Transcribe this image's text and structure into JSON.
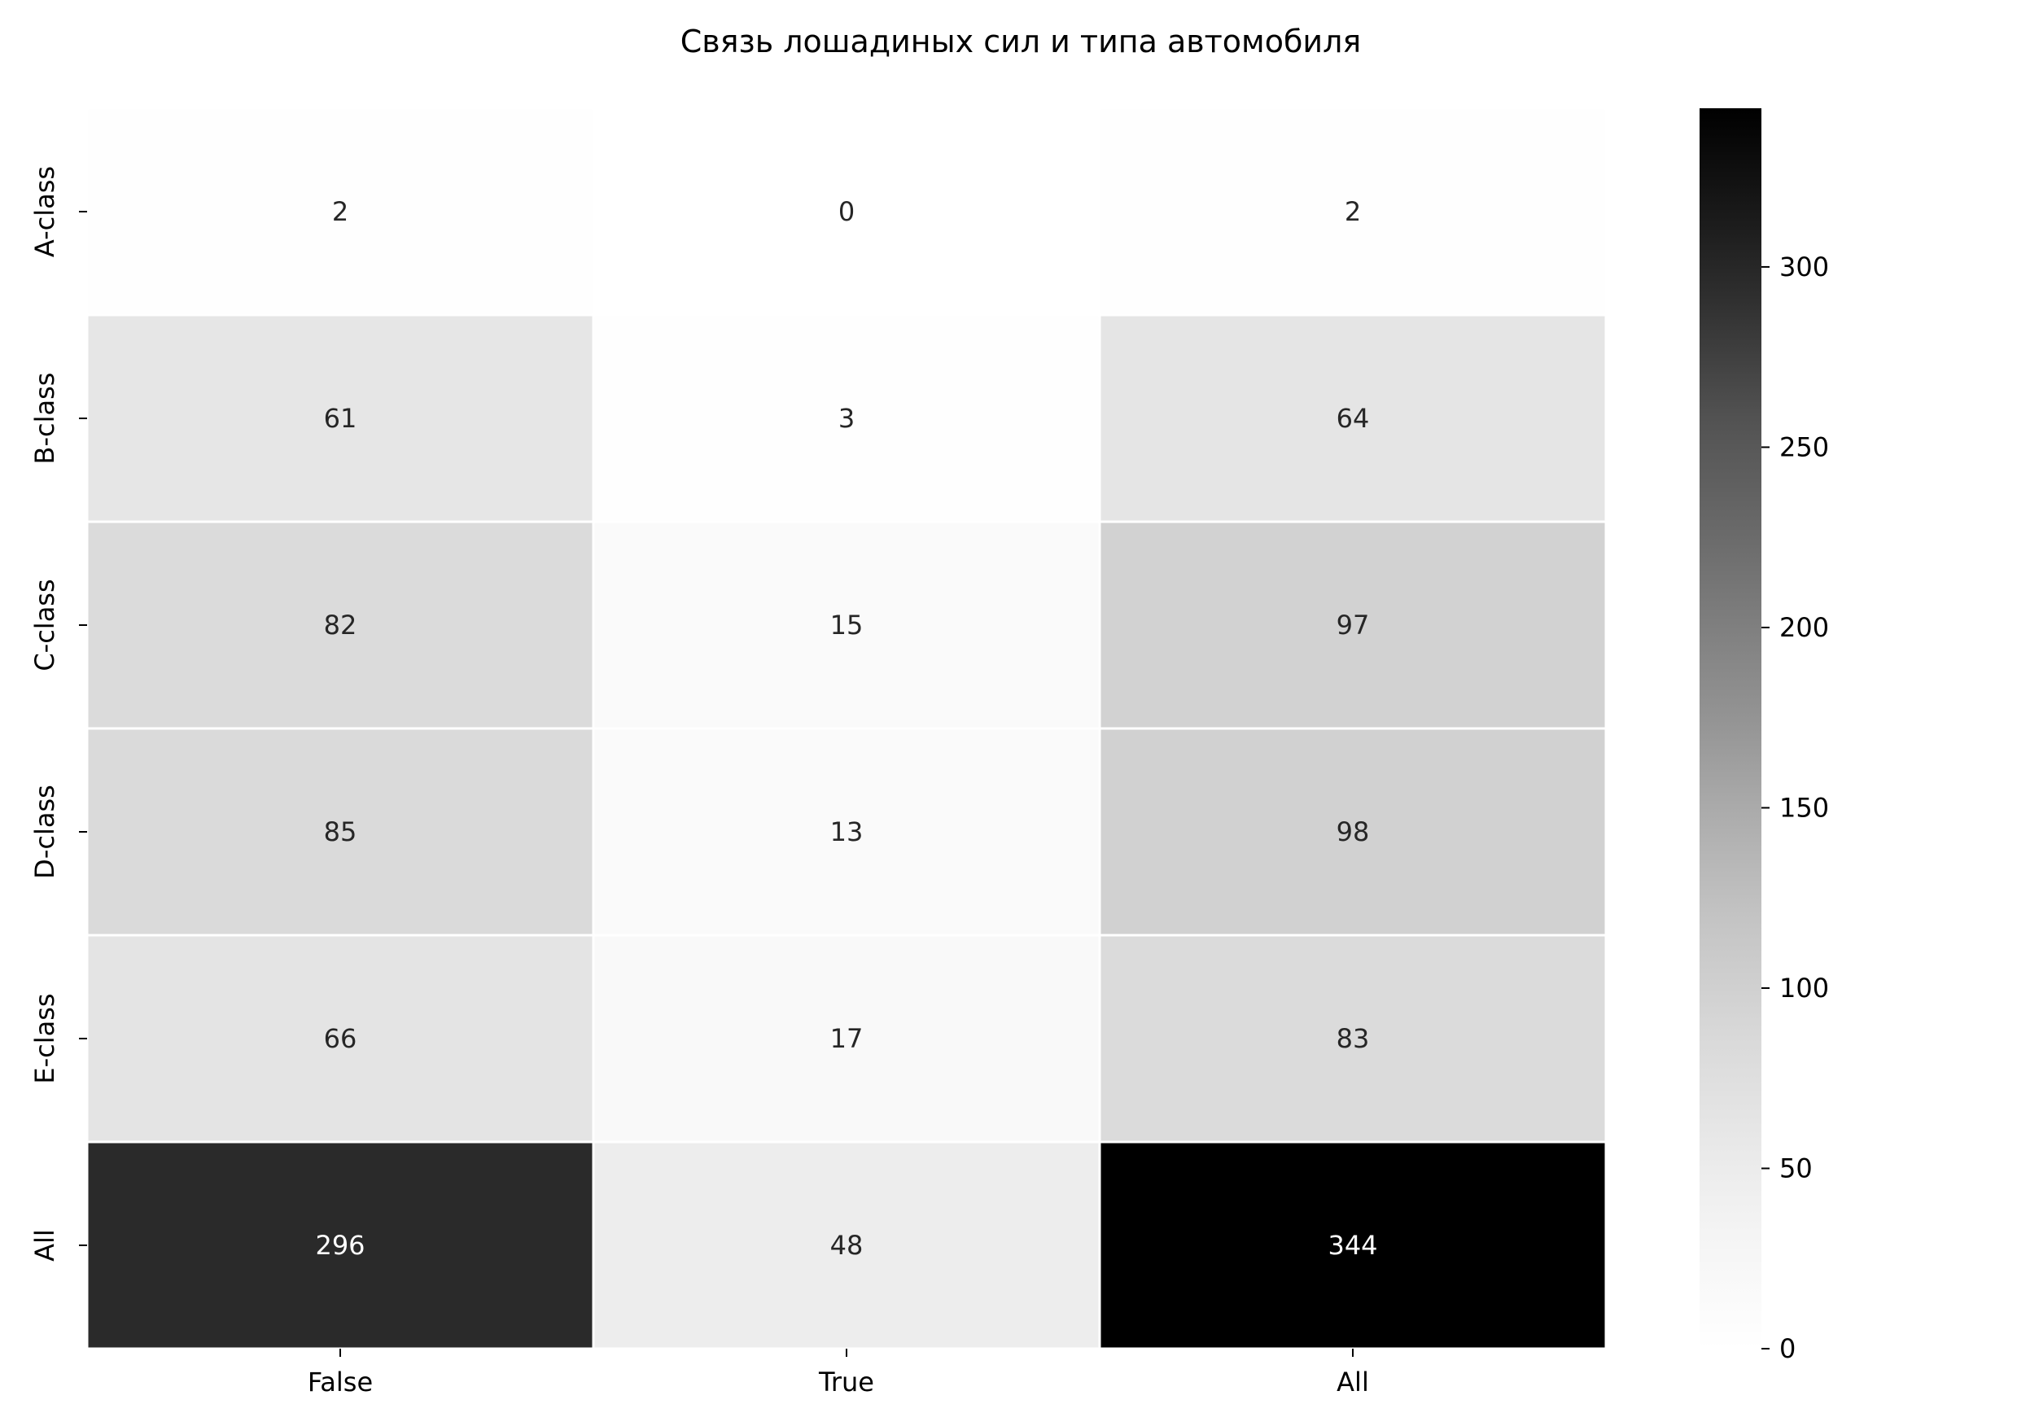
{
  "chart_data": {
    "type": "heatmap",
    "title": "Связь лошадиных сил и типа автомобиля",
    "xlabel": "",
    "ylabel": "",
    "x_categories": [
      "False",
      "True",
      "All"
    ],
    "y_categories": [
      "A-class",
      "B-class",
      "C-class",
      "D-class",
      "E-class",
      "All"
    ],
    "values": [
      [
        2,
        0,
        2
      ],
      [
        61,
        3,
        64
      ],
      [
        82,
        15,
        97
      ],
      [
        85,
        13,
        98
      ],
      [
        66,
        17,
        83
      ],
      [
        296,
        48,
        344
      ]
    ],
    "value_labels": [
      [
        "2",
        "0",
        "2"
      ],
      [
        "61",
        "3",
        "64"
      ],
      [
        "82",
        "15",
        "97"
      ],
      [
        "85",
        "13",
        "98"
      ],
      [
        "66",
        "17",
        "83"
      ],
      [
        "296",
        "48",
        "344"
      ]
    ],
    "colormap": {
      "name": "Greys",
      "low_color": "#ffffff",
      "high_color": "#000000"
    },
    "colorbar": {
      "vmin": 0,
      "vmax": 344,
      "ticks": [
        0,
        50,
        100,
        150,
        200,
        250,
        300
      ],
      "tick_labels": [
        "0",
        "50",
        "100",
        "150",
        "200",
        "250",
        "300"
      ]
    },
    "cell_border_color": "#ffffff",
    "annotation_colors": {
      "on_light": "#262626",
      "on_dark": "#ffffff"
    }
  }
}
